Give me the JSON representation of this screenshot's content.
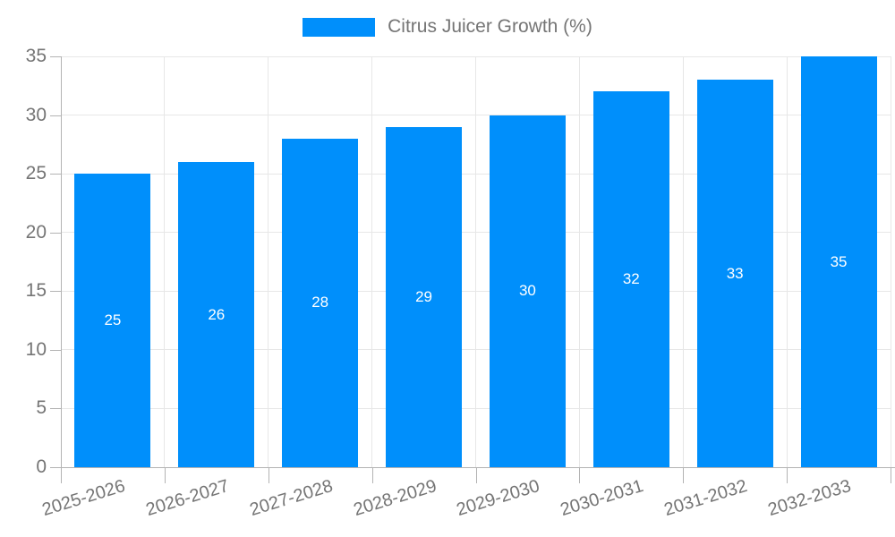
{
  "chart_data": {
    "type": "bar",
    "title": "",
    "legend_label": "Citrus Juicer Growth (%)",
    "legend_position": "top-center",
    "categories": [
      "2025-2026",
      "2026-2027",
      "2027-2028",
      "2028-2029",
      "2029-2030",
      "2030-2031",
      "2031-2032",
      "2032-2033"
    ],
    "values": [
      25,
      26,
      28,
      29,
      30,
      32,
      33,
      35
    ],
    "data_labels": [
      "25",
      "26",
      "28",
      "29",
      "30",
      "32",
      "33",
      "35"
    ],
    "y_tick_labels": [
      "0",
      "5",
      "10",
      "15",
      "20",
      "25",
      "30",
      "35"
    ],
    "xlabel": "",
    "ylabel": "",
    "ylim": [
      0,
      35
    ],
    "ytick_step": 5,
    "grid": "horizontal ticks and vertical category boundaries",
    "colors": {
      "bar": "#008FFB",
      "bar_value_label": "#ffffff",
      "axis_text": "#757575",
      "legend_text": "#757575",
      "gridline": "#e7e7e7",
      "axis_line": "#b3b3b3"
    }
  }
}
